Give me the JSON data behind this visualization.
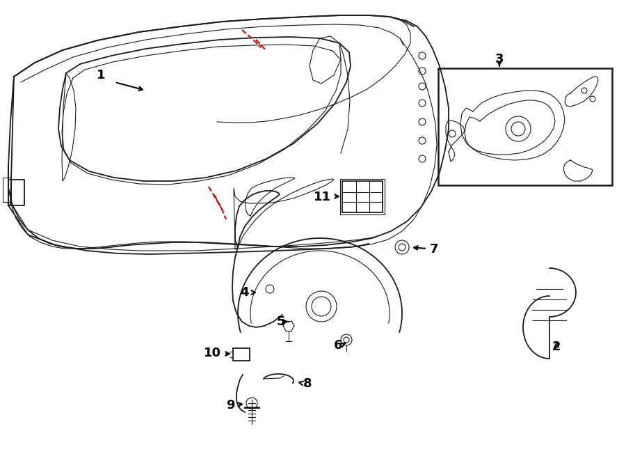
{
  "bg_color": "#ffffff",
  "line_color": "#1a1a1a",
  "red_color": "#cc0000",
  "label_color": "#000000",
  "figsize": [
    9.0,
    6.62
  ],
  "dpi": 100
}
